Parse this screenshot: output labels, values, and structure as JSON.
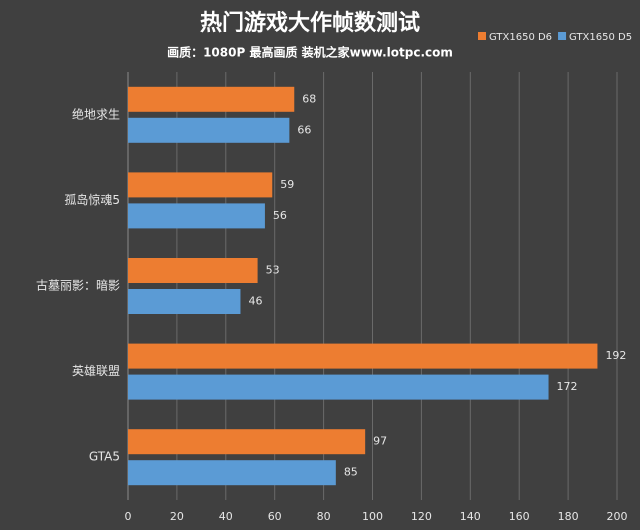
{
  "chart_data": {
    "type": "bar",
    "horizontal": true,
    "title": "热门游戏大作帧数测试",
    "subtitle": "画质：1080P 最高画质 装机之家www.lotpc.com",
    "categories": [
      "绝地求生",
      "孤岛惊魂5",
      "古墓丽影：暗影",
      "英雄联盟",
      "GTA5"
    ],
    "series": [
      {
        "name": "GTX1650 D6",
        "color": "#ed7d31",
        "values": [
          68,
          59,
          53,
          192,
          97
        ]
      },
      {
        "name": "GTX1650 D5",
        "color": "#5b9bd5",
        "values": [
          66,
          56,
          46,
          172,
          85
        ]
      }
    ],
    "xlim": [
      0,
      200
    ],
    "xticks": [
      0,
      20,
      40,
      60,
      80,
      100,
      120,
      140,
      160,
      180,
      200
    ],
    "grid": true,
    "legend": "top-right"
  }
}
